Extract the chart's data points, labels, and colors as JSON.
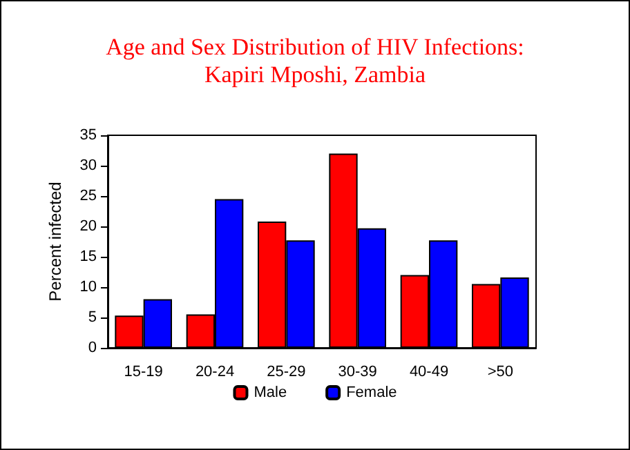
{
  "chart_data": {
    "type": "bar",
    "title": "Age and Sex Distribution of HIV Infections:\nKapiri Mposhi, Zambia",
    "ylabel": "Percent infected",
    "categories": [
      "15-19",
      "20-24",
      "25-29",
      "30-39",
      "40-49",
      ">50"
    ],
    "series": [
      {
        "name": "Male",
        "color": "#ff0000",
        "values": [
          5.3,
          5.5,
          20.8,
          32.0,
          12.0,
          10.5
        ]
      },
      {
        "name": "Female",
        "color": "#0000ff",
        "values": [
          8.0,
          24.5,
          17.7,
          19.7,
          17.7,
          11.6
        ]
      }
    ],
    "ylim": [
      0,
      35
    ],
    "yticks": [
      0,
      5,
      10,
      15,
      20,
      25,
      30,
      35
    ],
    "grid": false,
    "legend": "bottom"
  }
}
